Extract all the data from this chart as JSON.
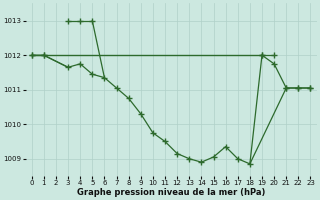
{
  "line_color": "#2d6a2d",
  "bg_color": "#cce8e0",
  "grid_color": "#b0d0c8",
  "xlabel": "Graphe pression niveau de la mer (hPa)",
  "ylim": [
    1008.5,
    1013.5
  ],
  "xlim": [
    -0.5,
    23.5
  ],
  "yticks": [
    1009,
    1010,
    1011,
    1012,
    1013
  ],
  "xticks": [
    0,
    1,
    2,
    3,
    4,
    5,
    6,
    7,
    8,
    9,
    10,
    11,
    12,
    13,
    14,
    15,
    16,
    17,
    18,
    19,
    20,
    21,
    22,
    23
  ],
  "ref_line": {
    "x": [
      0,
      19
    ],
    "y": [
      1012.0,
      1012.0
    ]
  },
  "upper_segments": [
    {
      "x": [
        0,
        1
      ],
      "y": [
        1012.0,
        1012.0
      ]
    },
    {
      "x": [
        3,
        4,
        5
      ],
      "y": [
        1013.0,
        1013.0,
        1013.0
      ]
    },
    {
      "x": [
        19,
        20
      ],
      "y": [
        1012.0,
        1012.0
      ]
    }
  ],
  "lower_x": [
    0,
    1,
    3,
    4,
    5,
    6,
    7,
    8,
    9,
    10,
    11,
    12,
    13,
    14,
    15,
    16,
    17,
    18,
    21,
    22,
    23
  ],
  "lower_y": [
    1012.0,
    1012.0,
    1011.65,
    1011.75,
    1011.45,
    1011.35,
    1011.05,
    1010.75,
    1010.3,
    1009.75,
    1009.5,
    1009.15,
    1009.0,
    1008.9,
    1009.05,
    1009.35,
    1009.0,
    1008.85,
    1011.05,
    1011.05,
    1011.05
  ],
  "vertical_segment": {
    "x": [
      18,
      19
    ],
    "y": [
      1008.85,
      1012.0
    ]
  },
  "right_segments": [
    {
      "x": [
        19,
        20,
        21,
        22,
        23
      ],
      "y": [
        1012.0,
        1011.75,
        1011.05,
        1011.05,
        1011.05
      ]
    }
  ]
}
